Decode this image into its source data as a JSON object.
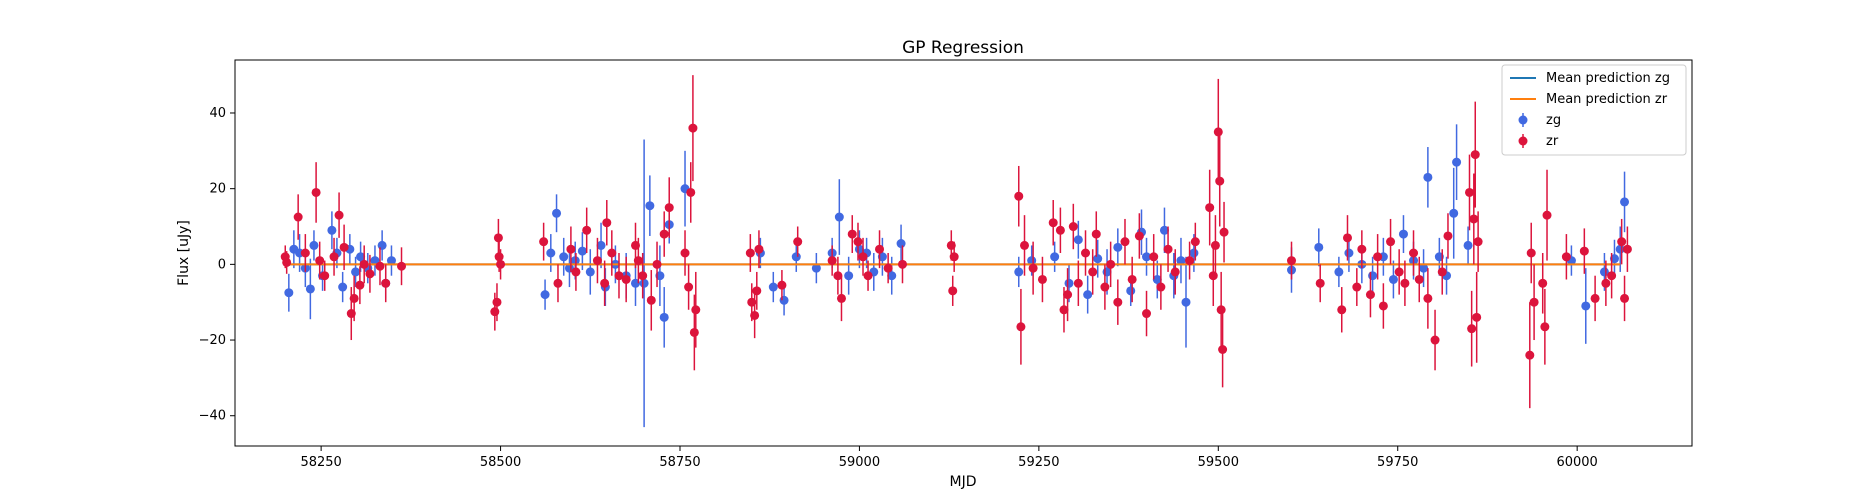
{
  "chart_data": {
    "type": "scatter",
    "title": "GP Regression",
    "xlabel": "MJD",
    "ylabel": "Flux [uJy]",
    "xlim": [
      58130,
      60160
    ],
    "ylim": [
      -48,
      54
    ],
    "xticks": [
      58250,
      58500,
      58750,
      59000,
      59250,
      59500,
      59750,
      60000
    ],
    "yticks": [
      -40,
      -20,
      0,
      20,
      40
    ],
    "grid": false,
    "legend": "top-right",
    "lines": [
      {
        "name": "Mean prediction zg",
        "color": "#1f77b4",
        "x": [
          58200,
          60060
        ],
        "y": [
          0,
          0
        ]
      },
      {
        "name": "Mean prediction zr",
        "color": "#ff7f0e",
        "x": [
          58200,
          60060
        ],
        "y": [
          0,
          0
        ]
      }
    ],
    "series": [
      {
        "name": "zg",
        "color": "#4169e1",
        "points": [
          [
            58205,
            -7.5,
            5
          ],
          [
            58212,
            4,
            5
          ],
          [
            58220,
            3,
            5
          ],
          [
            58228,
            -1,
            5
          ],
          [
            58235,
            -6.5,
            8
          ],
          [
            58240,
            5,
            4
          ],
          [
            58252,
            -3,
            4
          ],
          [
            58265,
            9,
            5
          ],
          [
            58272,
            3,
            4
          ],
          [
            58280,
            -6,
            4
          ],
          [
            58290,
            4,
            4
          ],
          [
            58298,
            -2,
            4
          ],
          [
            58305,
            2,
            4
          ],
          [
            58315,
            -1,
            4
          ],
          [
            58325,
            1,
            4
          ],
          [
            58335,
            5,
            4
          ],
          [
            58340,
            -5,
            4
          ],
          [
            58348,
            1,
            4
          ],
          [
            58562,
            -8,
            4
          ],
          [
            58570,
            3,
            5
          ],
          [
            58578,
            13.5,
            5
          ],
          [
            58588,
            2,
            5
          ],
          [
            58596,
            -1,
            5
          ],
          [
            58604,
            1,
            5
          ],
          [
            58614,
            3.5,
            5
          ],
          [
            58625,
            -2,
            6
          ],
          [
            58640,
            5,
            6
          ],
          [
            58646,
            -6,
            5
          ],
          [
            58660,
            0,
            5
          ],
          [
            58675,
            -3,
            6
          ],
          [
            58688,
            -5,
            6
          ],
          [
            58700,
            -5,
            38
          ],
          [
            58708,
            15.5,
            8
          ],
          [
            58722,
            -3,
            8
          ],
          [
            58728,
            -14,
            8
          ],
          [
            58735,
            10.5,
            5
          ],
          [
            58757,
            20,
            10
          ],
          [
            58862,
            3,
            4
          ],
          [
            58880,
            -6,
            4
          ],
          [
            58895,
            -9.5,
            4
          ],
          [
            58912,
            2,
            4
          ],
          [
            58940,
            -1,
            4
          ],
          [
            58962,
            3,
            4
          ],
          [
            58972,
            12.5,
            10
          ],
          [
            58985,
            -3,
            5
          ],
          [
            59000,
            4,
            5
          ],
          [
            59010,
            3,
            4
          ],
          [
            59020,
            -2,
            5
          ],
          [
            59032,
            2,
            5
          ],
          [
            59045,
            -3,
            5
          ],
          [
            59058,
            5.5,
            5
          ],
          [
            59222,
            -2,
            4
          ],
          [
            59240,
            1,
            4
          ],
          [
            59272,
            2,
            4
          ],
          [
            59292,
            -5,
            5
          ],
          [
            59305,
            6.5,
            5
          ],
          [
            59318,
            -8,
            5
          ],
          [
            59332,
            1.5,
            5
          ],
          [
            59345,
            -2,
            6
          ],
          [
            59360,
            4.5,
            5
          ],
          [
            59378,
            -7,
            4
          ],
          [
            59393,
            8.5,
            6
          ],
          [
            59400,
            2,
            5
          ],
          [
            59415,
            -4,
            5
          ],
          [
            59425,
            9,
            6
          ],
          [
            59438,
            -3,
            6
          ],
          [
            59448,
            1,
            6
          ],
          [
            59455,
            -10,
            12
          ],
          [
            59466,
            3,
            5
          ],
          [
            59602,
            -1.5,
            6
          ],
          [
            59640,
            4.5,
            5
          ],
          [
            59668,
            -2,
            4
          ],
          [
            59682,
            3,
            5
          ],
          [
            59700,
            0,
            5
          ],
          [
            59715,
            -3,
            5
          ],
          [
            59730,
            2,
            5
          ],
          [
            59744,
            -4,
            5
          ],
          [
            59758,
            8,
            5
          ],
          [
            59772,
            1,
            5
          ],
          [
            59786,
            -1,
            5
          ],
          [
            59792,
            23,
            8
          ],
          [
            59808,
            2,
            5
          ],
          [
            59818,
            -3,
            5
          ],
          [
            59828,
            13.5,
            12
          ],
          [
            59832,
            27,
            10
          ],
          [
            59848,
            5,
            5
          ],
          [
            59992,
            1,
            4
          ],
          [
            60012,
            -11,
            10
          ],
          [
            60038,
            -2,
            5
          ],
          [
            60052,
            1.5,
            5
          ],
          [
            60060,
            4,
            6
          ],
          [
            60066,
            16.5,
            8
          ]
        ]
      },
      {
        "name": "zr",
        "color": "#dc143c",
        "points": [
          [
            58200,
            2,
            3
          ],
          [
            58202,
            0.5,
            3
          ],
          [
            58218,
            12.5,
            6
          ],
          [
            58228,
            3,
            5
          ],
          [
            58243,
            19,
            8
          ],
          [
            58248,
            1,
            5
          ],
          [
            58255,
            -3,
            4
          ],
          [
            58268,
            2,
            5
          ],
          [
            58275,
            13,
            6
          ],
          [
            58282,
            4.5,
            6
          ],
          [
            58292,
            -13,
            7
          ],
          [
            58296,
            -9,
            6
          ],
          [
            58304,
            -5.5,
            5
          ],
          [
            58310,
            0,
            5
          ],
          [
            58318,
            -2.5,
            5
          ],
          [
            58332,
            -0.5,
            5
          ],
          [
            58340,
            -5,
            5
          ],
          [
            58362,
            -0.5,
            5
          ],
          [
            58492,
            -12.5,
            5
          ],
          [
            58495,
            -10,
            5
          ],
          [
            58497,
            7,
            5
          ],
          [
            58498,
            2,
            4
          ],
          [
            58500,
            0,
            4
          ],
          [
            58560,
            6,
            5
          ],
          [
            58580,
            -5,
            5
          ],
          [
            58598,
            4,
            6
          ],
          [
            58605,
            -2,
            5
          ],
          [
            58620,
            9,
            6
          ],
          [
            58635,
            1,
            6
          ],
          [
            58645,
            -5,
            6
          ],
          [
            58648,
            11,
            6
          ],
          [
            58655,
            3,
            6
          ],
          [
            58665,
            -3,
            6
          ],
          [
            58675,
            -4,
            6
          ],
          [
            58688,
            5,
            6
          ],
          [
            58692,
            1,
            6
          ],
          [
            58698,
            -3,
            6
          ],
          [
            58710,
            -9.5,
            8
          ],
          [
            58718,
            0,
            6
          ],
          [
            58728,
            8,
            6
          ],
          [
            58735,
            15,
            8
          ],
          [
            58757,
            3,
            6
          ],
          [
            58762,
            -6,
            6
          ],
          [
            58765,
            19,
            8
          ],
          [
            58768,
            36,
            14
          ],
          [
            58770,
            -18,
            10
          ],
          [
            58772,
            -12,
            10
          ],
          [
            58848,
            3,
            5
          ],
          [
            58850,
            -10,
            5
          ],
          [
            58854,
            -13.5,
            6
          ],
          [
            58857,
            -7,
            5
          ],
          [
            58860,
            4,
            5
          ],
          [
            58892,
            -5.5,
            4
          ],
          [
            58914,
            6,
            4
          ],
          [
            58962,
            1,
            4
          ],
          [
            58970,
            -3,
            5
          ],
          [
            58975,
            -9,
            6
          ],
          [
            58990,
            8,
            5
          ],
          [
            58998,
            6,
            5
          ],
          [
            59005,
            2,
            5
          ],
          [
            59012,
            -3,
            4
          ],
          [
            59028,
            4,
            5
          ],
          [
            59040,
            -1,
            4
          ],
          [
            59060,
            0,
            5
          ],
          [
            59128,
            5,
            4
          ],
          [
            59130,
            -7,
            4
          ],
          [
            59132,
            2,
            4
          ],
          [
            59222,
            18,
            8
          ],
          [
            59225,
            -16.5,
            10
          ],
          [
            59230,
            5,
            8
          ],
          [
            59242,
            -1,
            7
          ],
          [
            59255,
            -4,
            6
          ],
          [
            59270,
            11,
            6
          ],
          [
            59280,
            9,
            6
          ],
          [
            59285,
            -12,
            6
          ],
          [
            59290,
            -8,
            7
          ],
          [
            59298,
            10,
            6
          ],
          [
            59305,
            -5,
            6
          ],
          [
            59315,
            3,
            6
          ],
          [
            59325,
            -2,
            6
          ],
          [
            59330,
            8,
            6
          ],
          [
            59342,
            -6,
            6
          ],
          [
            59350,
            0,
            6
          ],
          [
            59360,
            -10,
            6
          ],
          [
            59370,
            6,
            6
          ],
          [
            59380,
            -4,
            6
          ],
          [
            59390,
            7.5,
            6
          ],
          [
            59400,
            -13,
            6
          ],
          [
            59410,
            2,
            6
          ],
          [
            59420,
            -6,
            6
          ],
          [
            59430,
            4,
            6
          ],
          [
            59440,
            -2,
            6
          ],
          [
            59460,
            1,
            5
          ],
          [
            59468,
            6,
            5
          ],
          [
            59488,
            15,
            10
          ],
          [
            59493,
            -3,
            8
          ],
          [
            59496,
            5,
            8
          ],
          [
            59500,
            35,
            14
          ],
          [
            59502,
            22,
            12
          ],
          [
            59504,
            -12,
            10
          ],
          [
            59506,
            -22.5,
            10
          ],
          [
            59508,
            8.5,
            8
          ],
          [
            59602,
            1,
            5
          ],
          [
            59642,
            -5,
            5
          ],
          [
            59672,
            -12,
            6
          ],
          [
            59680,
            7,
            6
          ],
          [
            59693,
            -6,
            5
          ],
          [
            59700,
            4,
            5
          ],
          [
            59712,
            -8,
            6
          ],
          [
            59722,
            2,
            6
          ],
          [
            59730,
            -11,
            6
          ],
          [
            59740,
            6,
            6
          ],
          [
            59752,
            -2,
            6
          ],
          [
            59760,
            -5,
            6
          ],
          [
            59772,
            3,
            6
          ],
          [
            59780,
            -4,
            6
          ],
          [
            59792,
            -9,
            8
          ],
          [
            59802,
            -20,
            8
          ],
          [
            59812,
            -2,
            6
          ],
          [
            59820,
            7.5,
            6
          ],
          [
            59850,
            19,
            10
          ],
          [
            59853,
            -17,
            10
          ],
          [
            59856,
            12,
            12
          ],
          [
            59858,
            29,
            14
          ],
          [
            59860,
            -14,
            12
          ],
          [
            59862,
            6,
            8
          ],
          [
            59934,
            -24,
            14
          ],
          [
            59936,
            3,
            8
          ],
          [
            59940,
            -10,
            10
          ],
          [
            59952,
            -5,
            8
          ],
          [
            59955,
            -16.5,
            10
          ],
          [
            59958,
            13,
            12
          ],
          [
            59985,
            2,
            6
          ],
          [
            60010,
            3.5,
            6
          ],
          [
            60025,
            -9,
            6
          ],
          [
            60040,
            -5,
            6
          ],
          [
            60048,
            -3,
            6
          ],
          [
            60062,
            6,
            6
          ],
          [
            60066,
            -9,
            6
          ],
          [
            60070,
            4,
            6
          ]
        ]
      }
    ]
  }
}
